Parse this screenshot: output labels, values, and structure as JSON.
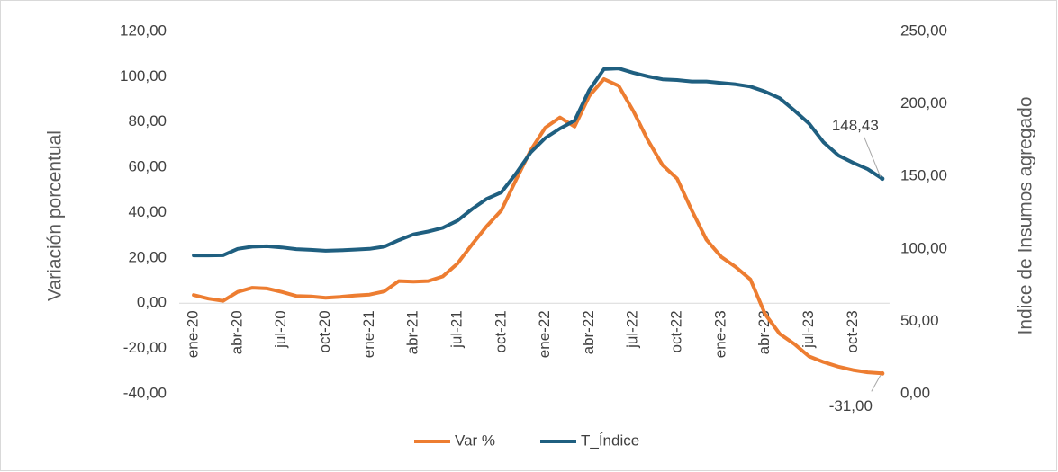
{
  "chart_data": {
    "type": "line",
    "y_label": "Variación porcentual",
    "y2_label": "Indice de Insumos agregado",
    "categories": [
      "ene-20",
      null,
      null,
      "abr-20",
      null,
      null,
      "jul-20",
      null,
      null,
      "oct-20",
      null,
      null,
      "ene-21",
      null,
      null,
      "abr-21",
      null,
      null,
      "jul-21",
      null,
      null,
      "oct-21",
      null,
      null,
      "ene-22",
      null,
      null,
      "abr-22",
      null,
      null,
      "jul-22",
      null,
      null,
      "oct-22",
      null,
      null,
      "ene-23",
      null,
      null,
      "abr-23",
      null,
      null,
      "jul-23",
      null,
      null,
      "oct-23",
      null,
      null
    ],
    "series": [
      {
        "name": "Var %",
        "color": "#ed7d31",
        "axis": "y",
        "values": [
          3.6,
          2.0,
          1.0,
          5.0,
          6.8,
          6.5,
          5.0,
          3.2,
          3.0,
          2.4,
          2.8,
          3.4,
          3.8,
          5.2,
          9.8,
          9.5,
          9.8,
          11.8,
          17.5,
          26.0,
          34.0,
          41.0,
          54.5,
          67.5,
          77.5,
          82.0,
          78.0,
          91.5,
          99.0,
          96.0,
          85.0,
          72.0,
          61.0,
          55.0,
          41.0,
          28.0,
          20.5,
          16.0,
          10.5,
          -4.8,
          -13.5,
          -18.0,
          -23.5,
          -26.0,
          -28.0,
          -29.5,
          -30.5,
          -31.0
        ],
        "value_labels": [
          null,
          null,
          null,
          null,
          null,
          null,
          null,
          null,
          null,
          null,
          null,
          null,
          null,
          null,
          null,
          null,
          null,
          null,
          null,
          null,
          null,
          null,
          null,
          null,
          null,
          null,
          null,
          null,
          null,
          null,
          null,
          null,
          null,
          null,
          null,
          null,
          null,
          null,
          null,
          null,
          null,
          null,
          null,
          null,
          null,
          null,
          null,
          "-31,00"
        ]
      },
      {
        "name": "T_Índice",
        "color": "#1f5f80",
        "axis": "y2",
        "values": [
          95.5,
          95.5,
          95.6,
          100,
          101.5,
          101.8,
          101,
          99.8,
          99.3,
          98.7,
          99,
          99.5,
          100,
          101.5,
          106,
          110,
          112,
          114.5,
          119.5,
          127.5,
          134.5,
          139,
          152,
          166.5,
          176.5,
          183,
          188.5,
          209.5,
          224,
          224.5,
          221.5,
          219,
          217,
          216.5,
          215.5,
          215.5,
          214.5,
          213.5,
          212,
          208.5,
          204,
          195.5,
          186.5,
          173.5,
          164.5,
          159.5,
          155,
          148.43
        ],
        "value_labels": [
          null,
          null,
          null,
          null,
          null,
          null,
          null,
          null,
          null,
          null,
          null,
          null,
          null,
          null,
          null,
          null,
          null,
          null,
          null,
          null,
          null,
          null,
          null,
          null,
          null,
          null,
          null,
          null,
          null,
          null,
          null,
          null,
          null,
          null,
          null,
          null,
          null,
          null,
          null,
          null,
          null,
          null,
          null,
          null,
          null,
          null,
          null,
          "148,43"
        ]
      }
    ],
    "ylim": [
      -40,
      120
    ],
    "yticks": [
      {
        "value": -40,
        "label": "-40,00"
      },
      {
        "value": -20,
        "label": "-20,00"
      },
      {
        "value": 0,
        "label": "0,00"
      },
      {
        "value": 20,
        "label": "20,00"
      },
      {
        "value": 40,
        "label": "40,00"
      },
      {
        "value": 60,
        "label": "60,00"
      },
      {
        "value": 80,
        "label": "80,00"
      },
      {
        "value": 100,
        "label": "100,00"
      },
      {
        "value": 120,
        "label": "120,00"
      }
    ],
    "y2lim": [
      0,
      250
    ],
    "y2ticks": [
      {
        "value": 0,
        "label": "0,00"
      },
      {
        "value": 50,
        "label": "50,00"
      },
      {
        "value": 100,
        "label": "100,00"
      },
      {
        "value": 150,
        "label": "150,00"
      },
      {
        "value": 200,
        "label": "200,00"
      },
      {
        "value": 250,
        "label": "250,00"
      }
    ],
    "grid": false,
    "legend": "bottom"
  }
}
